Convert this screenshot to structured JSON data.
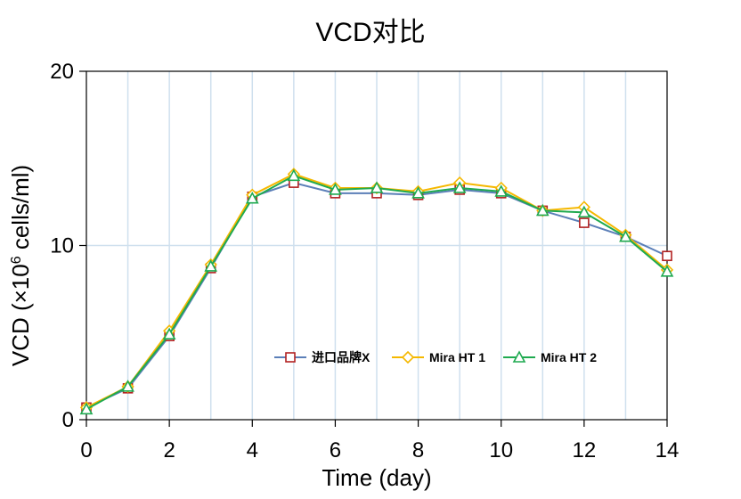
{
  "chart_data": {
    "type": "line",
    "title": "VCD对比",
    "xlabel": "Time (day)",
    "ylabel_prefix": "VCD (×10",
    "ylabel_sup": "6",
    "ylabel_suffix": " cells/ml)",
    "xlim": [
      0,
      14
    ],
    "ylim": [
      0,
      20
    ],
    "xticks": [
      0,
      2,
      4,
      6,
      8,
      10,
      12,
      14
    ],
    "yticks": [
      0,
      10,
      20
    ],
    "grid": "vertical",
    "legend_position": "lower-center",
    "x": [
      0,
      1,
      2,
      3,
      4,
      5,
      6,
      7,
      8,
      9,
      10,
      11,
      12,
      13,
      14
    ],
    "series": [
      {
        "name": "进口品牌X",
        "line_color": "#5b7fb8",
        "marker_color": "#b22222",
        "marker": "square",
        "values": [
          0.7,
          1.8,
          4.8,
          8.7,
          12.8,
          13.6,
          13.0,
          13.0,
          12.9,
          13.2,
          13.0,
          12.0,
          11.3,
          10.5,
          9.4
        ]
      },
      {
        "name": "Mira HT 1",
        "line_color": "#f5b800",
        "marker_color": "#f5b800",
        "marker": "diamond",
        "values": [
          0.7,
          1.9,
          5.1,
          8.9,
          12.9,
          14.1,
          13.3,
          13.3,
          13.1,
          13.6,
          13.3,
          12.0,
          12.2,
          10.6,
          8.6
        ]
      },
      {
        "name": "Mira HT 2",
        "line_color": "#1faa50",
        "marker_color": "#1faa50",
        "marker": "triangle",
        "values": [
          0.6,
          1.9,
          4.9,
          8.8,
          12.7,
          14.0,
          13.2,
          13.3,
          13.0,
          13.3,
          13.1,
          12.0,
          11.9,
          10.5,
          8.5
        ]
      }
    ]
  }
}
